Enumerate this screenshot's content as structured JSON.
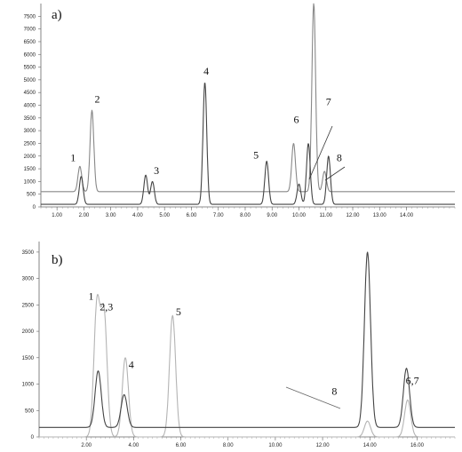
{
  "chart_data": [
    {
      "type": "line",
      "panel_label": "a)",
      "xlim": [
        0.4,
        15.8
      ],
      "ylim": [
        0,
        8000
      ],
      "xticks": [
        "1.00",
        "2.00",
        "3.00",
        "4.00",
        "5.00",
        "6.00",
        "7.00",
        "8.00",
        "9.00",
        "10.00",
        "11.00",
        "12.00",
        "13.00",
        "14.00"
      ],
      "yticks": [
        "0",
        "500",
        "1000",
        "1500",
        "2000",
        "2500",
        "3000",
        "3500",
        "4000",
        "4500",
        "5000",
        "5500",
        "6000",
        "6500",
        "7000",
        "7500"
      ],
      "series": [
        {
          "color": "#888888",
          "baseline": 600,
          "peaks": [
            [
              1.85,
              1600
            ],
            [
              2.3,
              3800
            ],
            [
              6.5,
              600
            ],
            [
              9.8,
              2500
            ],
            [
              10.55,
              8000
            ],
            [
              10.95,
              1400
            ]
          ]
        },
        {
          "color": "#444444",
          "baseline": 100,
          "peaks": [
            [
              1.9,
              1200
            ],
            [
              4.3,
              1250
            ],
            [
              4.55,
              1000
            ],
            [
              6.5,
              4900
            ],
            [
              8.8,
              1800
            ],
            [
              10.0,
              900
            ],
            [
              10.35,
              2500
            ],
            [
              11.1,
              2000
            ]
          ]
        }
      ],
      "annotations": [
        {
          "text": "1",
          "x": 1.6,
          "y": 1800
        },
        {
          "text": "2",
          "x": 2.5,
          "y": 4100
        },
        {
          "text": "3",
          "x": 4.7,
          "y": 1300
        },
        {
          "text": "4",
          "x": 6.55,
          "y": 5200
        },
        {
          "text": "5",
          "x": 8.4,
          "y": 1900
        },
        {
          "text": "6",
          "x": 9.9,
          "y": 3300
        },
        {
          "text": "7",
          "x": 11.1,
          "y": 4000
        },
        {
          "text": "8",
          "x": 11.5,
          "y": 1800
        }
      ]
    },
    {
      "type": "line",
      "panel_label": "b)",
      "xlim": [
        0.0,
        17.6
      ],
      "ylim": [
        0,
        3700
      ],
      "xticks": [
        "2.00",
        "4.00",
        "6.00",
        "8.00",
        "10.00",
        "12.00",
        "14.00",
        "16.00"
      ],
      "yticks": [
        "0",
        "500",
        "1000",
        "1500",
        "2000",
        "2500",
        "3000",
        "3500"
      ],
      "series": [
        {
          "color": "#b4b4b4",
          "baseline": 0,
          "peaks": [
            [
              2.45,
              2500
            ],
            [
              2.75,
              2300
            ],
            [
              3.65,
              1500
            ],
            [
              5.65,
              2300
            ],
            [
              13.9,
              300
            ],
            [
              15.6,
              700
            ]
          ]
        },
        {
          "color": "#444444",
          "baseline": 180,
          "peaks": [
            [
              2.5,
              1250
            ],
            [
              3.6,
              800
            ],
            [
              13.9,
              3500
            ],
            [
              15.55,
              1300
            ]
          ]
        }
      ],
      "annotations": [
        {
          "text": "1",
          "x": 2.2,
          "y": 2600
        },
        {
          "text": "2,3",
          "x": 2.85,
          "y": 2400
        },
        {
          "text": "4",
          "x": 3.9,
          "y": 1300
        },
        {
          "text": "5",
          "x": 5.9,
          "y": 2300
        },
        {
          "text": "6,7",
          "x": 15.8,
          "y": 1000
        },
        {
          "text": "8",
          "x": 12.5,
          "y": 800
        }
      ]
    }
  ]
}
